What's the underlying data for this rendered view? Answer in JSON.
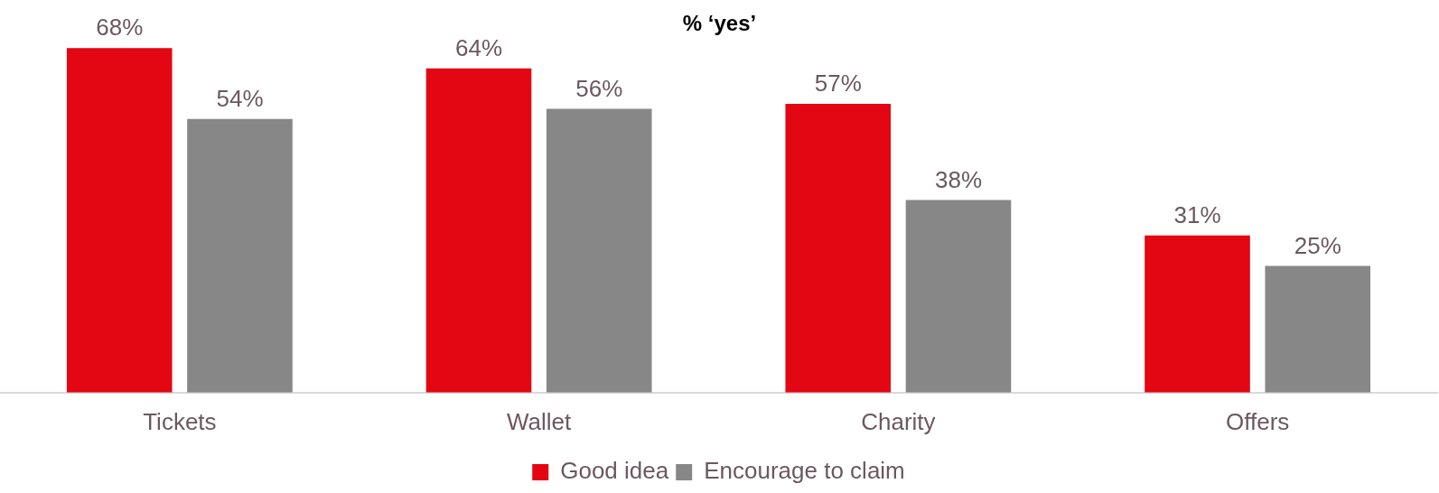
{
  "chart_data": {
    "type": "bar",
    "title": "% ‘yes’",
    "categories": [
      "Tickets",
      "Wallet",
      "Charity",
      "Offers"
    ],
    "series": [
      {
        "name": "Good idea",
        "color": "#e30613",
        "values": [
          68,
          64,
          57,
          31
        ],
        "value_labels": [
          "68%",
          "64%",
          "57%",
          "31%"
        ]
      },
      {
        "name": "Encourage to claim",
        "color": "#878787",
        "values": [
          54,
          56,
          38,
          25
        ],
        "value_labels": [
          "54%",
          "56%",
          "38%",
          "25%"
        ]
      }
    ],
    "legend": "bottom",
    "grid": false
  }
}
